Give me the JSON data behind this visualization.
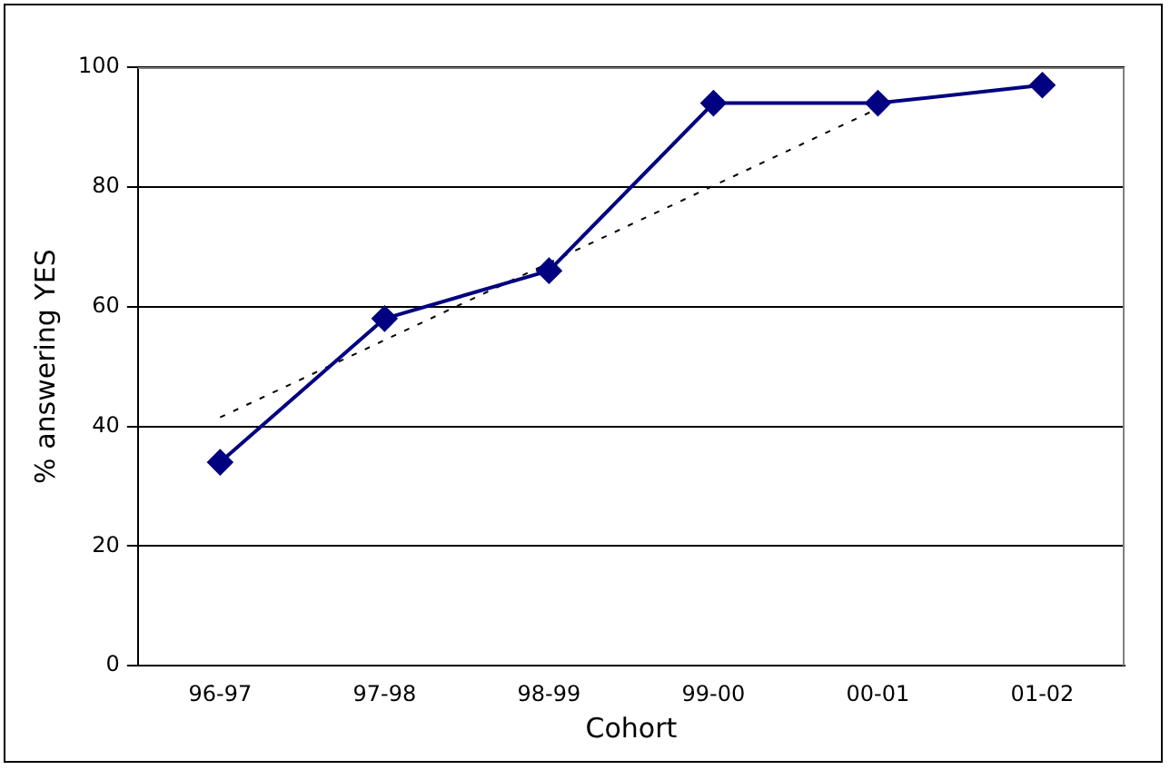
{
  "chart_data": {
    "type": "line",
    "xlabel": "Cohort",
    "ylabel": "% answering YES",
    "categories": [
      "96-97",
      "97-98",
      "98-99",
      "99-00",
      "00-01",
      "01-02"
    ],
    "series": [
      {
        "color": "#000080",
        "values": [
          34,
          58,
          66,
          94,
          94,
          97
        ],
        "marker": "diamond",
        "line_style": "solid"
      },
      {
        "type": "line",
        "color": "#000000",
        "values": [
          41.5,
          54.4,
          67.3,
          80.2,
          93.1,
          null
        ],
        "marker": "none",
        "line_style": "dashed"
      }
    ],
    "ylim": [
      0,
      100
    ],
    "yticks": [
      0,
      20,
      40,
      60,
      80,
      100
    ],
    "grid": "y",
    "legend": false
  }
}
